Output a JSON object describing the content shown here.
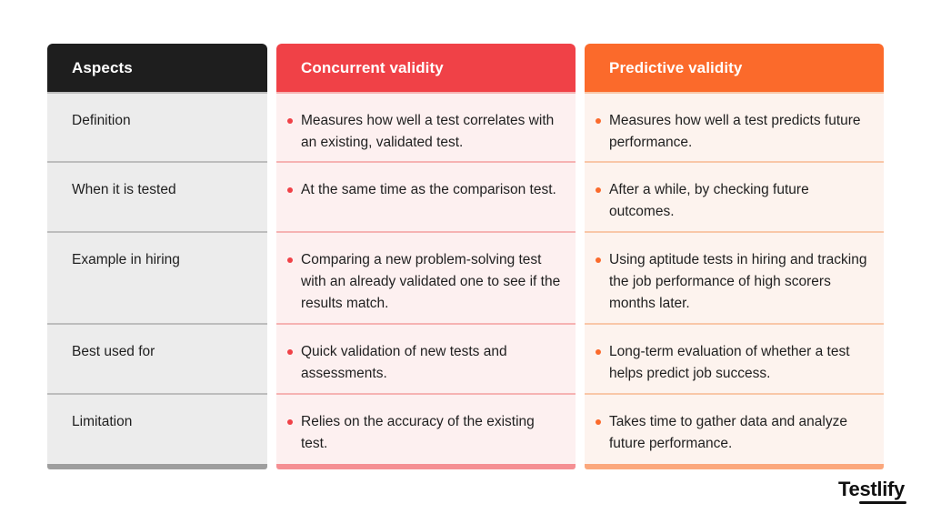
{
  "table": {
    "headers": {
      "aspects": "Aspects",
      "concurrent": "Concurrent validity",
      "predictive": "Predictive validity"
    },
    "rows": [
      {
        "aspect": "Definition",
        "concurrent": "Measures how well a test correlates with an existing, validated test.",
        "predictive": "Measures how well a test predicts future performance."
      },
      {
        "aspect": "When it is tested",
        "concurrent": "At the same time as the comparison test.",
        "predictive": "After a while, by checking future outcomes."
      },
      {
        "aspect": "Example in hiring",
        "concurrent": "Comparing a new problem-solving test with an already validated one to see if the results match.",
        "predictive": "Using aptitude tests in hiring and tracking the job performance of high scorers months later."
      },
      {
        "aspect": "Best used for",
        "concurrent": "Quick validation of new tests and assessments.",
        "predictive": "Long-term evaluation of whether a test helps predict job success."
      },
      {
        "aspect": "Limitation",
        "concurrent": "Relies on the accuracy of the existing test.",
        "predictive": "Takes time to gather data and analyze future performance."
      }
    ]
  },
  "brand": {
    "logo_text": "Testlify"
  },
  "colors": {
    "aspects_header": "#1e1e1e",
    "concurrent_accent": "#f04147",
    "predictive_accent": "#fb6a2b"
  }
}
